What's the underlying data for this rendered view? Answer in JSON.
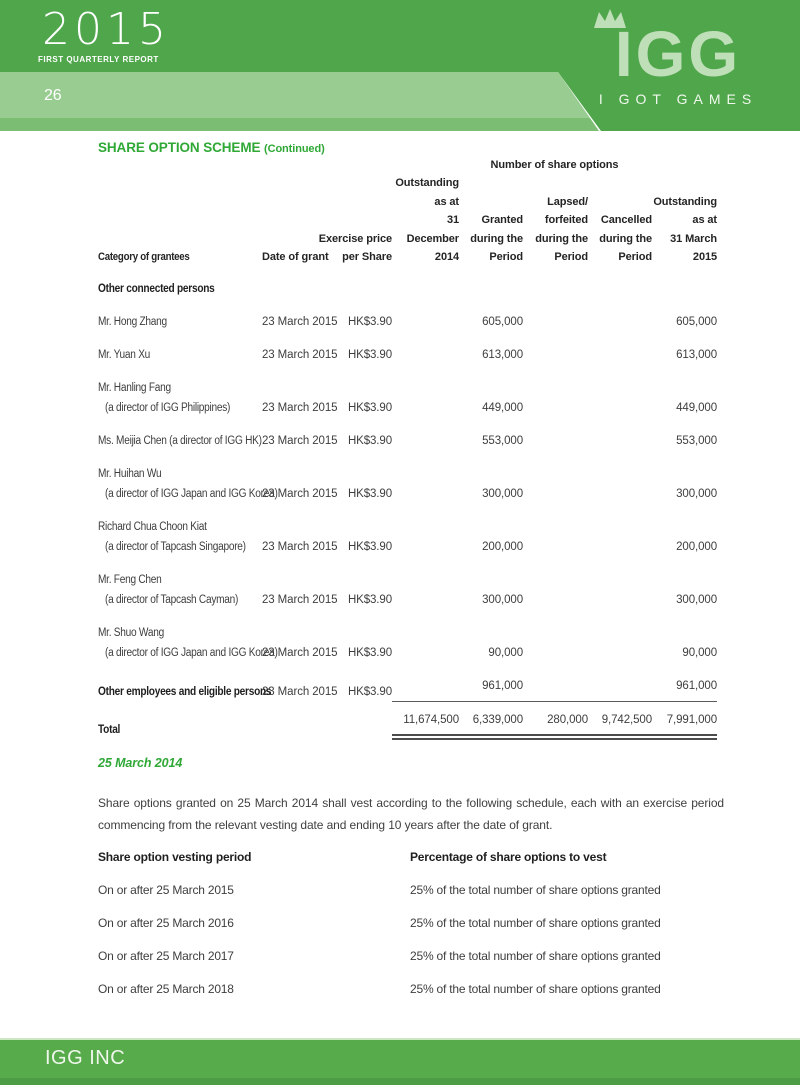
{
  "header": {
    "year": "2015",
    "report_label": "FIRST QUARTERLY REPORT",
    "page_number": "26",
    "logo_text": "IGG",
    "logo_tagline": "I GOT GAMES",
    "colors": {
      "dark_green": "#4FA64B",
      "light_green": "#98CC90",
      "mid_green": "#7CBD74"
    }
  },
  "title": {
    "main": "SHARE OPTION SCHEME",
    "suffix": "(Continued)"
  },
  "options_table": {
    "group_header": "Number of share options",
    "columns": [
      "Category of grantees",
      "Date of grant",
      "Exercise price\nper Share",
      "Outstanding\nas at\n31 December\n2014",
      "Granted\nduring the\nPeriod",
      "Lapsed/\nforfeited\nduring the\nPeriod",
      "Cancelled\nduring the\nPeriod",
      "Outstanding\nas at\n31 March\n2015"
    ],
    "rows": [
      {
        "name": "Other connected persons",
        "bold": true,
        "section": true
      },
      {
        "name": "Mr. Hong Zhang",
        "date": "23 March 2015",
        "price": "HK$3.90",
        "granted": "605,000",
        "out_mar": "605,000"
      },
      {
        "name": "Mr. Yuan Xu",
        "date": "23 March 2015",
        "price": "HK$3.90",
        "granted": "613,000",
        "out_mar": "613,000"
      },
      {
        "name": "Mr. Hanling Fang",
        "sub": "(a director of IGG Philippines)",
        "date": "23 March 2015",
        "price": "HK$3.90",
        "granted": "449,000",
        "out_mar": "449,000"
      },
      {
        "name": "Ms. Meijia Chen (a director of IGG HK)",
        "date": "23 March 2015",
        "price": "HK$3.90",
        "granted": "553,000",
        "out_mar": "553,000"
      },
      {
        "name": "Mr. Huihan Wu",
        "sub": "(a director of IGG Japan and IGG Korea)",
        "date": "23 March 2015",
        "price": "HK$3.90",
        "granted": "300,000",
        "out_mar": "300,000"
      },
      {
        "name": "Richard Chua Choon Kiat",
        "sub": "(a director of Tapcash Singapore)",
        "date": "23 March 2015",
        "price": "HK$3.90",
        "granted": "200,000",
        "out_mar": "200,000"
      },
      {
        "name": "Mr. Feng Chen",
        "sub": "(a director of Tapcash Cayman)",
        "date": "23 March 2015",
        "price": "HK$3.90",
        "granted": "300,000",
        "out_mar": "300,000"
      },
      {
        "name": "Mr. Shuo Wang",
        "sub": "(a director of IGG Japan and IGG Korea)",
        "date": "23 March 2015",
        "price": "HK$3.90",
        "granted": "90,000",
        "out_mar": "90,000"
      },
      {
        "name": "Other employees and eligible persons",
        "bold": true,
        "date": "23 March 2015",
        "price": "HK$3.90",
        "granted": "961,000",
        "out_mar": "961,000",
        "rule": "single"
      },
      {
        "name": "Total",
        "bold": true,
        "out_dec": "11,674,500",
        "granted": "6,339,000",
        "lapsed": "280,000",
        "cancelled": "9,742,500",
        "out_mar": "7,991,000",
        "rule": "double"
      }
    ]
  },
  "vesting": {
    "date_heading": "25 March 2014",
    "paragraph": "Share options granted on 25 March 2014 shall vest according to the following schedule, each with an exercise period commencing from the relevant vesting date and ending 10 years after the date of grant.",
    "col1_header": "Share option vesting period",
    "col2_header": "Percentage of share options to vest",
    "rows": [
      {
        "period": "On or after 25 March 2015",
        "pct": "25% of the total number of share options granted"
      },
      {
        "period": "On or after 25 March 2016",
        "pct": "25% of the total number of share options granted"
      },
      {
        "period": "On or after 25 March 2017",
        "pct": "25% of the total number of share options granted"
      },
      {
        "period": "On or after 25 March 2018",
        "pct": "25% of the total number of share options granted"
      }
    ]
  },
  "footer": {
    "company": "IGG INC",
    "colors": {
      "band": "#57AB4A",
      "strip": "#4B9C44",
      "hairline": "#CDE7C5"
    }
  }
}
